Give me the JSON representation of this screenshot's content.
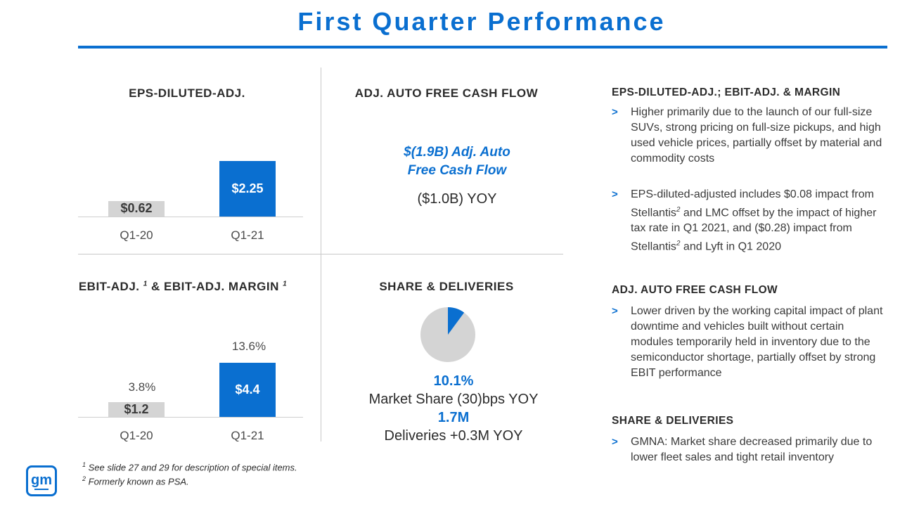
{
  "title": "First Quarter Performance",
  "colors": {
    "accent": "#0a6fd0",
    "bar_prior": "#d4d4d4",
    "bar_current": "#0a6fd0"
  },
  "eps": {
    "heading": "EPS-DILUTED-ADJ.",
    "categories": [
      "Q1-20",
      "Q1-21"
    ],
    "values": [
      0.62,
      2.25
    ],
    "value_labels": [
      "$0.62",
      "$2.25"
    ]
  },
  "fcf": {
    "heading": "ADJ. AUTO FREE CASH FLOW",
    "value_line1": "$(1.9B) Adj. Auto",
    "value_line2": "Free Cash Flow",
    "yoy": "($1.0B) YOY"
  },
  "ebit": {
    "heading": "EBIT-ADJ.",
    "heading_sup1": "1",
    "heading_mid": " & EBIT-ADJ. MARGIN",
    "heading_sup2": "1",
    "categories": [
      "Q1-20",
      "Q1-21"
    ],
    "values": [
      1.2,
      4.4
    ],
    "value_labels": [
      "$1.2",
      "$4.4"
    ],
    "margins": [
      "3.8%",
      "13.6%"
    ]
  },
  "share": {
    "heading": "SHARE & DELIVERIES",
    "market_share": "10.1%",
    "market_share_pct": 10.1,
    "market_share_text": "Market Share (30)bps YOY",
    "deliveries": "1.7M",
    "deliveries_text": "Deliveries +0.3M YOY"
  },
  "right": {
    "sec1_heading": "EPS-DILUTED-ADJ.; EBIT-ADJ. & MARGIN",
    "sec1_b1": "Higher primarily due to the launch of our full-size SUVs, strong pricing on full-size pickups, and high used vehicle prices, partially offset by material and commodity costs",
    "sec1_b2_a": "EPS-diluted-adjusted includes $0.08 impact from Stellantis",
    "sec1_b2_sup1": "2",
    "sec1_b2_b": " and LMC offset by the impact of higher tax rate in Q1 2021, and ($0.28) impact from Stellantis",
    "sec1_b2_sup2": "2",
    "sec1_b2_c": " and Lyft in Q1 2020",
    "sec2_heading": "ADJ. AUTO FREE CASH FLOW",
    "sec2_b1": "Lower driven by the working capital impact of plant downtime and vehicles built without certain modules temporarily held in inventory due to the semiconductor shortage, partially offset by strong EBIT performance",
    "sec3_heading": "SHARE & DELIVERIES",
    "sec3_b1": "GMNA: Market share decreased primarily due to lower fleet sales and tight retail inventory",
    "chevron": ">"
  },
  "footnotes": {
    "f1_sup": "1",
    "f1": " See slide 27 and 29 for description of special items.",
    "f2_sup": "2",
    "f2": " Formerly known as PSA."
  },
  "logo_text": "gm"
}
